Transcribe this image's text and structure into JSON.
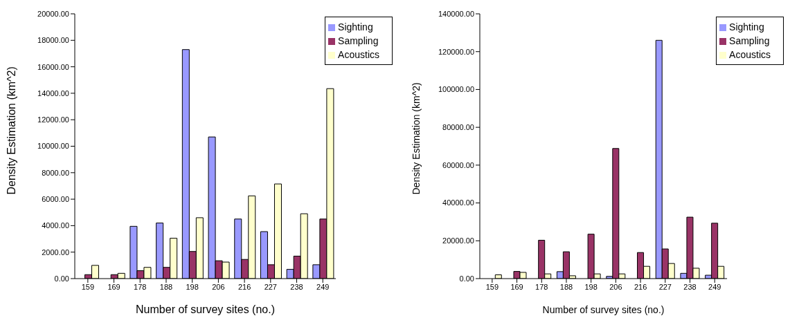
{
  "chart_data": [
    {
      "type": "bar",
      "xlabel": "Number of survey sites (no.)",
      "ylabel": "Density Estimation (km^2)",
      "categories": [
        "159",
        "169",
        "178",
        "188",
        "198",
        "206",
        "216",
        "227",
        "238",
        "249"
      ],
      "series": [
        {
          "name": "Sighting",
          "color": "#9999ff",
          "values": [
            0,
            0,
            3950,
            4200,
            17300,
            10700,
            4500,
            3550,
            700,
            1050
          ]
        },
        {
          "name": "Sampling",
          "color": "#993366",
          "values": [
            300,
            300,
            600,
            850,
            2050,
            1350,
            1450,
            1050,
            1700,
            4500
          ]
        },
        {
          "name": "Acoustics",
          "color": "#ffffcc",
          "values": [
            1000,
            400,
            850,
            3050,
            4600,
            1250,
            6250,
            7150,
            4900,
            14350
          ]
        }
      ],
      "ylim": [
        0,
        20000
      ],
      "yticks": [
        {
          "value": 0,
          "label": "0.00"
        },
        {
          "value": 2000,
          "label": "2000.00"
        },
        {
          "value": 4000,
          "label": "4000.00"
        },
        {
          "value": 6000,
          "label": "6000.00"
        },
        {
          "value": 8000,
          "label": "8000.00"
        },
        {
          "value": 10000,
          "label": "10000.00"
        },
        {
          "value": 12000,
          "label": "12000.00"
        },
        {
          "value": 14000,
          "label": "14000.00"
        },
        {
          "value": 16000,
          "label": "16000.00"
        },
        {
          "value": 18000,
          "label": "18000.00"
        },
        {
          "value": 20000,
          "label": "20000.00"
        }
      ],
      "grid": false,
      "legend": "top right"
    },
    {
      "type": "bar",
      "xlabel": "Number of survey sites (no.)",
      "ylabel": "Density Estimation (km^2)",
      "categories": [
        "159",
        "169",
        "178",
        "188",
        "198",
        "206",
        "216",
        "227",
        "238",
        "249"
      ],
      "series": [
        {
          "name": "Sighting",
          "color": "#9999ff",
          "values": [
            0,
            0,
            0,
            3700,
            0,
            1200,
            0,
            126000,
            2800,
            1800
          ]
        },
        {
          "name": "Sampling",
          "color": "#993366",
          "values": [
            0,
            3800,
            20300,
            14200,
            23500,
            68800,
            13800,
            15700,
            32500,
            29300
          ]
        },
        {
          "name": "Acoustics",
          "color": "#ffffcc",
          "values": [
            2000,
            3300,
            2500,
            1500,
            2500,
            2500,
            6500,
            8000,
            5500,
            6500
          ]
        }
      ],
      "ylim": [
        0,
        140000
      ],
      "yticks": [
        {
          "value": 0,
          "label": "0.00"
        },
        {
          "value": 20000,
          "label": "20000.00"
        },
        {
          "value": 40000,
          "label": "40000.00"
        },
        {
          "value": 60000,
          "label": "60000.00"
        },
        {
          "value": 80000,
          "label": "80000.00"
        },
        {
          "value": 100000,
          "label": "100000.00"
        },
        {
          "value": 120000,
          "label": "120000.00"
        },
        {
          "value": 140000,
          "label": "140000.00"
        }
      ],
      "grid": false,
      "legend": "top right"
    }
  ]
}
